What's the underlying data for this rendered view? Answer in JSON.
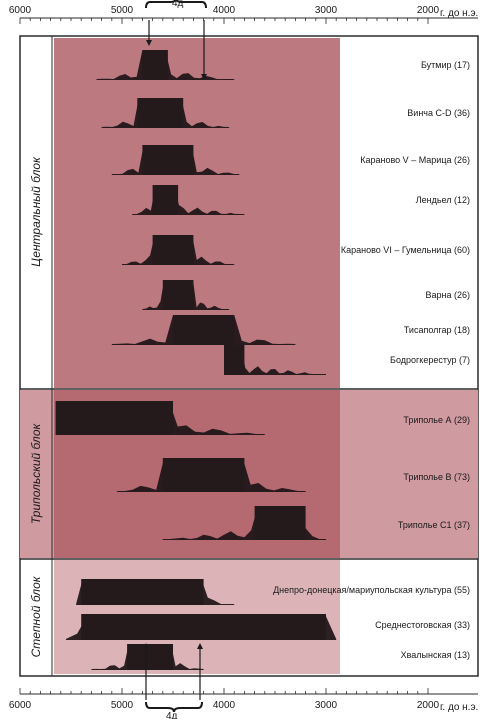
{
  "axis": {
    "unit": "г. до н.э.",
    "ticks": [
      6000,
      5000,
      4000,
      3000,
      2000
    ],
    "bracket_label": "4д"
  },
  "colors": {
    "band_main": "#b56a72",
    "band_light": "#cf9aa0",
    "block_bg": "#c68a90",
    "ink": "#1c1416",
    "frame": "#2b2b2b"
  },
  "blocks": [
    {
      "label": "Центральный блок",
      "shade": "main"
    },
    {
      "label": "Трипольский блок",
      "shade": "main"
    },
    {
      "label": "Степной блок",
      "shade": "light"
    }
  ],
  "cultures": [
    {
      "label": "Бутмир (17)",
      "range": [
        5250,
        3900
      ],
      "block": [
        4800,
        4550
      ]
    },
    {
      "label": "Винча C-D (36)",
      "range": [
        5200,
        3950
      ],
      "block": [
        4850,
        4400
      ]
    },
    {
      "label": "Караново V – Марица (26)",
      "range": [
        5100,
        3850
      ],
      "block": [
        4800,
        4300
      ]
    },
    {
      "label": "Лендьел (12)",
      "range": [
        4900,
        3800
      ],
      "block": [
        4700,
        4450
      ]
    },
    {
      "label": "Караново VI – Гумельница (60)",
      "range": [
        5000,
        3900
      ],
      "block": [
        4700,
        4300
      ]
    },
    {
      "label": "Варна (26)",
      "range": [
        4800,
        3950
      ],
      "block": [
        4600,
        4300
      ]
    },
    {
      "label": "Тисаполгар (18)",
      "range": [
        5100,
        3300
      ],
      "block": [
        4500,
        3900
      ]
    },
    {
      "label": "Бодрогкерестур (7)",
      "range": [
        4000,
        3000
      ],
      "block": [
        4000,
        3800
      ]
    },
    {
      "label": "Триполье А (29)",
      "range": [
        5650,
        3600
      ],
      "block": [
        5650,
        4500
      ]
    },
    {
      "label": "Триполье B (73)",
      "range": [
        5050,
        3200
      ],
      "block": [
        4600,
        3800
      ]
    },
    {
      "label": "Триполье C1 (37)",
      "range": [
        4600,
        3000
      ],
      "block": [
        3700,
        3200
      ]
    },
    {
      "label": "Днепро-донецкая/мариупольская культура (55)",
      "range": [
        5450,
        3900
      ],
      "block": [
        5400,
        4200
      ]
    },
    {
      "label": "Среднестоговская (33)",
      "range": [
        5550,
        2900
      ],
      "block": [
        5400,
        3000
      ]
    },
    {
      "label": "Хвалынская (13)",
      "range": [
        5300,
        4200
      ],
      "block": [
        4950,
        4500
      ]
    }
  ]
}
